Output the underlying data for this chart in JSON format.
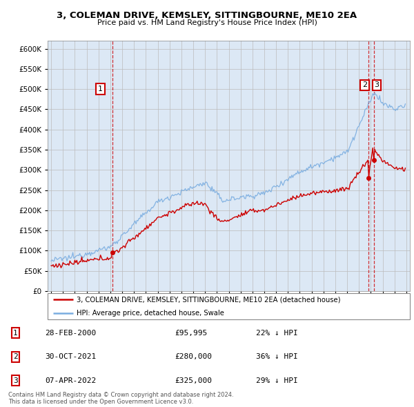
{
  "title": "3, COLEMAN DRIVE, KEMSLEY, SITTINGBOURNE, ME10 2EA",
  "subtitle": "Price paid vs. HM Land Registry's House Price Index (HPI)",
  "legend_line1": "3, COLEMAN DRIVE, KEMSLEY, SITTINGBOURNE, ME10 2EA (detached house)",
  "legend_line2": "HPI: Average price, detached house, Swale",
  "footnote1": "Contains HM Land Registry data © Crown copyright and database right 2024.",
  "footnote2": "This data is licensed under the Open Government Licence v3.0.",
  "transactions": [
    {
      "num": 1,
      "date": "28-FEB-2000",
      "price": "£95,995",
      "pct": "22% ↓ HPI",
      "year": 2000.16
    },
    {
      "num": 2,
      "date": "30-OCT-2021",
      "price": "£280,000",
      "pct": "36% ↓ HPI",
      "year": 2021.83
    },
    {
      "num": 3,
      "date": "07-APR-2022",
      "price": "£325,000",
      "pct": "29% ↓ HPI",
      "year": 2022.27
    }
  ],
  "transaction_prices": [
    95995,
    280000,
    325000
  ],
  "hpi_color": "#7aade0",
  "price_color": "#cc0000",
  "vline_color": "#cc0000",
  "bg_color": "#dce8f5",
  "ylim": [
    0,
    620000
  ],
  "xlim_start": 1994.7,
  "xlim_end": 2025.3
}
